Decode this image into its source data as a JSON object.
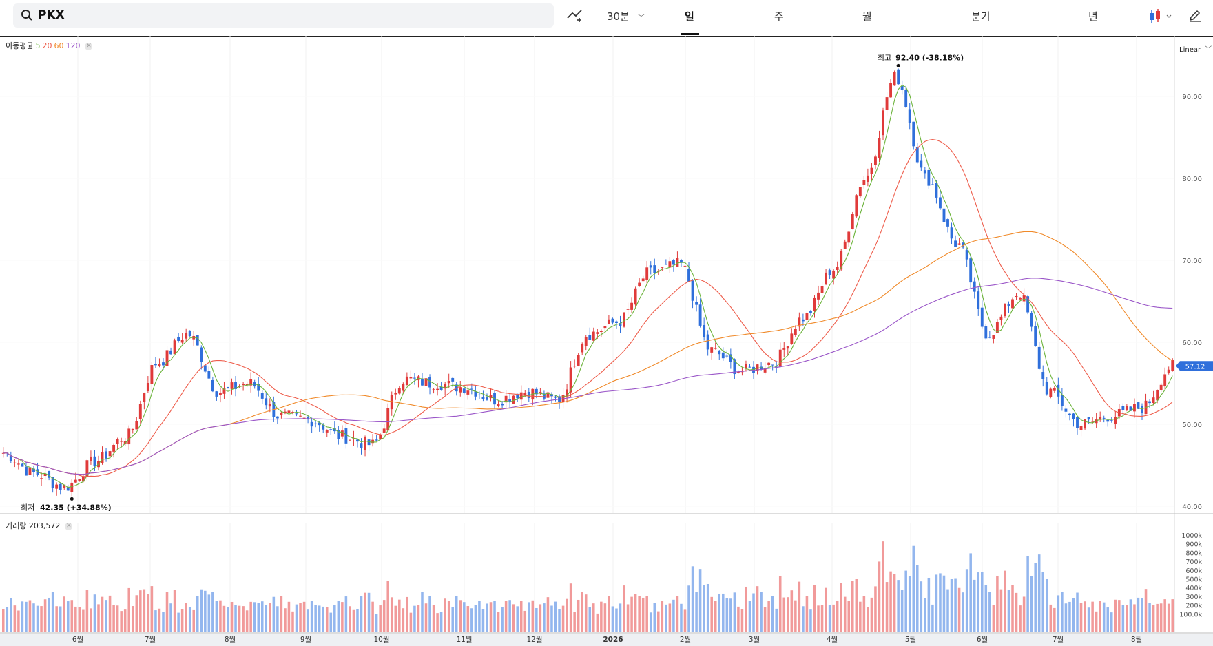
{
  "toolbar": {
    "symbol": "PKX",
    "interval": "30분",
    "tabs": [
      "일",
      "주",
      "월",
      "분기",
      "년"
    ],
    "active_tab": "일"
  },
  "scale_mode": "Linear",
  "legend": {
    "ma_title": "이동평균",
    "ma_periods": [
      "5",
      "20",
      "60",
      "120"
    ],
    "volume_label": "거래량 203,572"
  },
  "annotations": {
    "high_label": "최고",
    "high_value": "92.40 (-38.18%)",
    "low_label": "최저",
    "low_value": "42.35 (+34.88%)",
    "current_price": "57.12"
  },
  "colors": {
    "up": "#e03a3a",
    "down": "#2f6fdb",
    "up_volume": "#f19a9a",
    "down_volume": "#93b6ee",
    "ma5": "#6bb33a",
    "ma20": "#ee5c4a",
    "ma60": "#f08a2a",
    "ma120": "#9a56c8"
  },
  "chart_data": {
    "type": "candlestick",
    "ylim": [
      40,
      94
    ],
    "y_ticks": [
      "40.00",
      "50.00",
      "60.00",
      "70.00",
      "80.00",
      "90.00"
    ],
    "x_ticks": [
      "6월",
      "7월",
      "8월",
      "9월",
      "10월",
      "11월",
      "12월",
      "2026",
      "2월",
      "3월",
      "4월",
      "5월",
      "6월",
      "7월",
      "8월"
    ],
    "volume_ylim": [
      0,
      1060000
    ],
    "volume_ticks": [
      "100.0k",
      "200k",
      "300k",
      "400k",
      "500k",
      "600k",
      "700k",
      "800k",
      "900k",
      "1000k"
    ],
    "price_anchors": [
      [
        "5월 초",
        46.5
      ],
      [
        "6월 초",
        44.0
      ],
      [
        "6월 중",
        42.35
      ],
      [
        "6월 말",
        45.5
      ],
      [
        "7월 초",
        48.5
      ],
      [
        "7월 중",
        57.5
      ],
      [
        "7월 말",
        61.0
      ],
      [
        "8월 초",
        54.0
      ],
      [
        "8월 중",
        55.0
      ],
      [
        "9월 초",
        51.0
      ],
      [
        "9월 말",
        50.5
      ],
      [
        "10월 초",
        48.5
      ],
      [
        "10월 중",
        47.5
      ],
      [
        "10월 말",
        55.5
      ],
      [
        "11월 초",
        55.0
      ],
      [
        "11월 중",
        54.5
      ],
      [
        "12월",
        53.0
      ],
      [
        "1월 초",
        54.0
      ],
      [
        "1월 중",
        53.0
      ],
      [
        "1월 말",
        61.0
      ],
      [
        "2월 초",
        62.5
      ],
      [
        "2월 말",
        68.5
      ],
      [
        "3월 초",
        69.5
      ],
      [
        "3월 중",
        59.0
      ],
      [
        "3월 말",
        56.5
      ],
      [
        "4월 초",
        57.5
      ],
      [
        "4월 중",
        63.0
      ],
      [
        "4월 말",
        69.0
      ],
      [
        "5월 초",
        80.0
      ],
      [
        "5월 중",
        92.4
      ],
      [
        "5월 말",
        80.0
      ],
      [
        "6월 초",
        72.0
      ],
      [
        "6월 중",
        61.0
      ],
      [
        "6월 말",
        66.0
      ],
      [
        "7월 초",
        54.0
      ],
      [
        "7월 중",
        50.0
      ],
      [
        "7월 말",
        51.0
      ],
      [
        "8월 초",
        52.0
      ],
      [
        "8월 중",
        57.12
      ]
    ],
    "moving_averages": [
      "5",
      "20",
      "60",
      "120"
    ],
    "high": 92.4,
    "low": 42.35,
    "last": 57.12
  }
}
